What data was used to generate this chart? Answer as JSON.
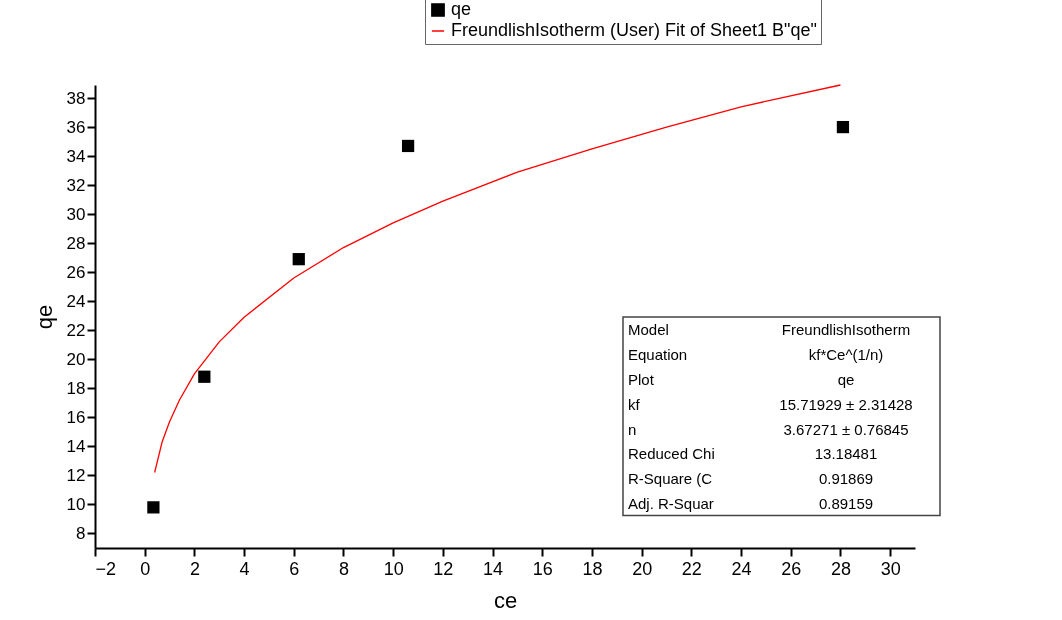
{
  "chart_data": {
    "type": "scatter",
    "xlabel": "ce",
    "ylabel": "qe",
    "xlim": [
      -2,
      31
    ],
    "xticks": [
      -2,
      0,
      2,
      4,
      6,
      8,
      10,
      12,
      14,
      16,
      18,
      20,
      22,
      24,
      26,
      28,
      30
    ],
    "ylim": [
      7,
      38.9
    ],
    "yticks": [
      8,
      10,
      12,
      14,
      16,
      18,
      20,
      22,
      24,
      26,
      28,
      30,
      32,
      34,
      36,
      38
    ],
    "grid": false,
    "legend": "top",
    "series": [
      {
        "name": "qe",
        "marker": "square",
        "color": "#000000",
        "x": [
          0.35,
          2.4,
          6.2,
          10.6,
          28.1
        ],
        "values": [
          9.8,
          18.8,
          26.9,
          34.7,
          36.0
        ]
      },
      {
        "name": "FreundlishIsotherm (User) Fit of Sheet1 B\"qe\"",
        "type": "line",
        "marker": "none",
        "color": "#ff0000",
        "line_style": "solid",
        "x": [
          0.4,
          0.7,
          1,
          1.4,
          2,
          3,
          4,
          6,
          8,
          10,
          12,
          15,
          18,
          21,
          24,
          28
        ],
        "values": [
          12.2,
          14.3,
          15.7,
          17.2,
          19.0,
          21.2,
          22.9,
          25.6,
          27.7,
          29.4,
          30.9,
          32.9,
          34.5,
          36.0,
          37.4,
          38.9
        ]
      }
    ],
    "annotations": [
      "Model",
      "FreundlishIsotherm",
      "Equation",
      "kf*Ce^(1/n)",
      "Plot",
      "qe",
      "kf",
      "15.71929 ± 2.31428",
      "n",
      "3.67271 ± 0.76845",
      "Reduced Chi",
      "13.18481",
      "R-Square (C",
      "0.91869",
      "Adj. R-Squar",
      "0.89159"
    ]
  }
}
